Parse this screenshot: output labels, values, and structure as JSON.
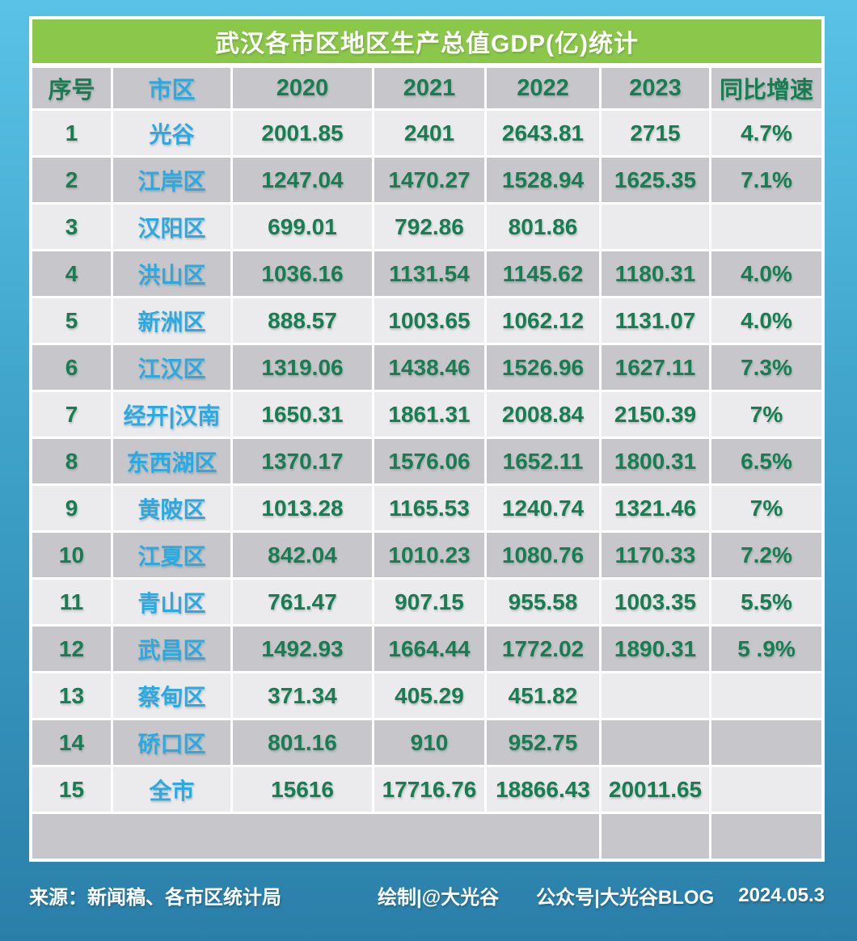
{
  "title": "武汉各市区地区生产总值GDP(亿)统计",
  "chart_data": {
    "type": "table",
    "title": "武汉各市区地区生产总值GDP(亿)统计",
    "unit": "亿",
    "columns": [
      "序号",
      "市区",
      "2020",
      "2021",
      "2022",
      "2023",
      "同比增速"
    ],
    "rows": [
      [
        "1",
        "光谷",
        "2001.85",
        "2401",
        "2643.81",
        "2715",
        "4.7%"
      ],
      [
        "2",
        "江岸区",
        "1247.04",
        "1470.27",
        "1528.94",
        "1625.35",
        "7.1%"
      ],
      [
        "3",
        "汉阳区",
        "699.01",
        "792.86",
        "801.86",
        "",
        ""
      ],
      [
        "4",
        "洪山区",
        "1036.16",
        "1131.54",
        "1145.62",
        "1180.31",
        "4.0%"
      ],
      [
        "5",
        "新洲区",
        "888.57",
        "1003.65",
        "1062.12",
        "1131.07",
        "4.0%"
      ],
      [
        "6",
        "江汉区",
        "1319.06",
        "1438.46",
        "1526.96",
        "1627.11",
        "7.3%"
      ],
      [
        "7",
        "经开|汉南",
        "1650.31",
        "1861.31",
        "2008.84",
        "2150.39",
        "7%"
      ],
      [
        "8",
        "东西湖区",
        "1370.17",
        "1576.06",
        "1652.11",
        "1800.31",
        "6.5%"
      ],
      [
        "9",
        "黄陂区",
        "1013.28",
        "1165.53",
        "1240.74",
        "1321.46",
        "7%"
      ],
      [
        "10",
        "江夏区",
        "842.04",
        "1010.23",
        "1080.76",
        "1170.33",
        "7.2%"
      ],
      [
        "11",
        "青山区",
        "761.47",
        "907.15",
        "955.58",
        "1003.35",
        "5.5%"
      ],
      [
        "12",
        "武昌区",
        "1492.93",
        "1664.44",
        "1772.02",
        "1890.31",
        "5 .9%"
      ],
      [
        "13",
        "蔡甸区",
        "371.34",
        "405.29",
        "451.82",
        "",
        ""
      ],
      [
        "14",
        "硚口区",
        "801.16",
        "910",
        "952.75",
        "",
        ""
      ],
      [
        "15",
        "全市",
        "15616",
        "17716.76",
        "18866.43",
        "20011.65",
        ""
      ]
    ]
  },
  "footer": {
    "source": "来源：新闻稿、各市区统计局",
    "credit": "绘制|@大光谷",
    "account": "公众号|大光谷BLOG",
    "date": "2024.05.3"
  },
  "colors": {
    "title_bar": "#8bc74a",
    "value_text": "#177d52",
    "district_text": "#29aae2",
    "row_light": "#ebebed",
    "row_dark": "#c7c7cb",
    "bg_top": "#5ac2e6",
    "bg_bottom": "#2a7fa9"
  }
}
